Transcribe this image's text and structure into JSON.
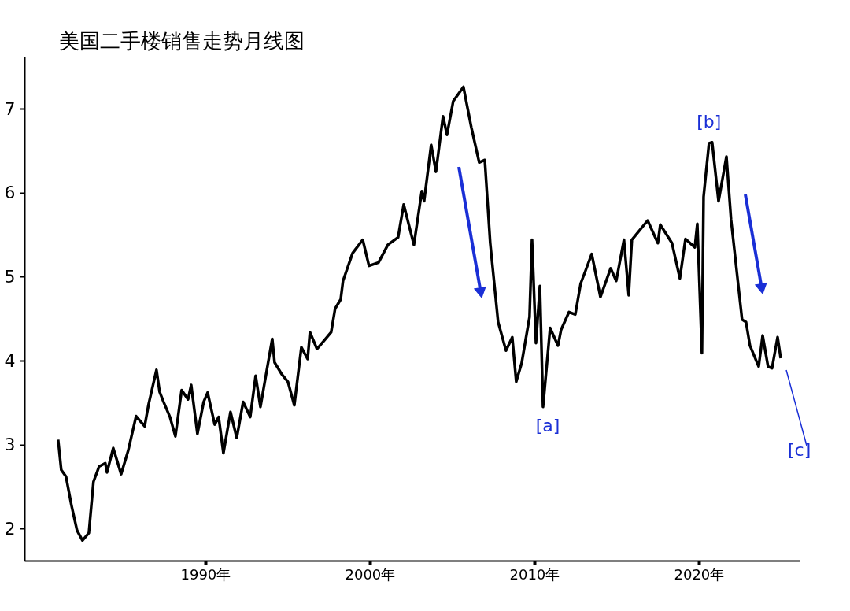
{
  "chart_data": {
    "type": "line",
    "title": "美国二手楼销售走势月线图",
    "x": [
      1981.05,
      1981.24,
      1981.53,
      1981.86,
      1982.2,
      1982.53,
      1982.92,
      1983.2,
      1983.54,
      1983.92,
      1984.02,
      1984.4,
      1984.88,
      1985.31,
      1985.79,
      1986.31,
      1986.55,
      1987.03,
      1987.22,
      1987.46,
      1987.85,
      1988.18,
      1988.56,
      1988.95,
      1989.14,
      1989.52,
      1989.9,
      1990.14,
      1990.57,
      1990.81,
      1991.1,
      1991.53,
      1991.91,
      1992.3,
      1992.73,
      1993.06,
      1993.35,
      1993.73,
      1994.07,
      1994.21,
      1994.64,
      1995.02,
      1995.41,
      1995.84,
      1996.22,
      1996.36,
      1996.79,
      1997.27,
      1997.65,
      1997.89,
      1998.23,
      1998.37,
      1998.95,
      1999.57,
      1999.95,
      2000.53,
      2001.1,
      2001.72,
      2002.06,
      2002.68,
      2003.16,
      2003.3,
      2003.73,
      2004.02,
      2004.45,
      2004.69,
      2005.07,
      2005.69,
      2006.17,
      2006.65,
      2006.99,
      2007.32,
      2007.8,
      2008.28,
      2008.66,
      2008.9,
      2009.23,
      2009.71,
      2009.86,
      2010.1,
      2010.34,
      2010.53,
      2010.96,
      2011.44,
      2011.63,
      2012.11,
      2012.49,
      2012.82,
      2013.11,
      2013.49,
      2014.02,
      2014.64,
      2014.98,
      2015.45,
      2015.74,
      2015.93,
      2016.89,
      2017.51,
      2017.66,
      2018.37,
      2018.85,
      2019.19,
      2019.76,
      2019.91,
      2020.19,
      2020.29,
      2020.62,
      2020.81,
      2021.2,
      2021.68,
      2021.96,
      2022.63,
      2022.87,
      2023.11,
      2023.64,
      2023.88,
      2024.21,
      2024.45,
      2024.79,
      2024.98
    ],
    "series": [
      {
        "color": "#000000",
        "values": [
          3.06,
          2.7,
          2.62,
          2.28,
          1.98,
          1.86,
          1.95,
          2.56,
          2.74,
          2.78,
          2.67,
          2.96,
          2.65,
          2.93,
          3.34,
          3.22,
          3.48,
          3.89,
          3.63,
          3.51,
          3.33,
          3.1,
          3.65,
          3.54,
          3.71,
          3.13,
          3.51,
          3.62,
          3.24,
          3.33,
          2.9,
          3.39,
          3.08,
          3.51,
          3.33,
          3.82,
          3.45,
          3.88,
          4.26,
          3.98,
          3.84,
          3.75,
          3.47,
          4.16,
          4.02,
          4.34,
          4.14,
          4.25,
          4.34,
          4.62,
          4.73,
          4.95,
          5.28,
          5.44,
          5.13,
          5.17,
          5.38,
          5.47,
          5.86,
          5.38,
          6.02,
          5.9,
          6.57,
          6.25,
          6.91,
          6.69,
          7.09,
          7.26,
          6.78,
          6.36,
          6.39,
          5.4,
          4.46,
          4.12,
          4.28,
          3.75,
          3.97,
          4.52,
          5.44,
          4.21,
          4.89,
          3.45,
          4.39,
          4.18,
          4.37,
          4.58,
          4.55,
          4.92,
          5.07,
          5.27,
          4.76,
          5.1,
          4.95,
          5.44,
          4.78,
          5.44,
          5.67,
          5.4,
          5.62,
          5.4,
          4.98,
          5.45,
          5.35,
          5.63,
          4.09,
          5.95,
          6.59,
          6.6,
          5.9,
          6.43,
          5.68,
          4.49,
          4.46,
          4.18,
          3.93,
          4.3,
          3.93,
          3.91,
          4.28,
          4.03
        ]
      }
    ],
    "xlim": [
      1979,
      2026.13
    ],
    "ylim": [
      1.62,
      7.62
    ],
    "xticks": [
      {
        "value": 1990,
        "label": "1990年"
      },
      {
        "value": 2000,
        "label": "2000年"
      },
      {
        "value": 2010,
        "label": "2010年"
      },
      {
        "value": 2020,
        "label": "2020年"
      }
    ],
    "yticks": [
      2,
      3,
      4,
      5,
      6,
      7
    ],
    "grid": false,
    "marker": "none",
    "line_style": "solid",
    "annotations": [
      {
        "text": "[a]",
        "x": 2010.53,
        "y": 3.45
      },
      {
        "text": "[b]",
        "x": 2020.81,
        "y": 6.6
      },
      "[c]"
    ]
  }
}
